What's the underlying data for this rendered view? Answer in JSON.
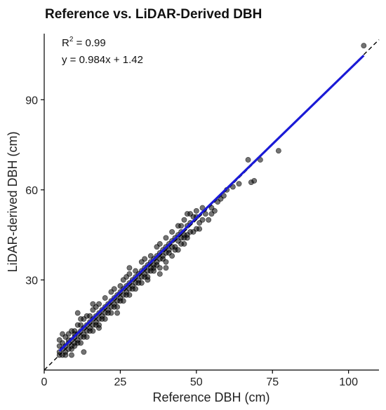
{
  "chart_data": {
    "type": "scatter",
    "title": "Reference vs. LiDAR-Derived DBH",
    "xlabel": "Reference DBH (cm)",
    "ylabel": "LiDAR-derived DBH (cm)",
    "xlim": [
      0,
      110
    ],
    "ylim": [
      0,
      112
    ],
    "xticks": [
      0,
      25,
      50,
      75,
      100
    ],
    "yticks": [
      30,
      60,
      90
    ],
    "annotations": {
      "r2_prefix": "R",
      "r2_sup": "2",
      "r2_value": " = 0.99",
      "equation": "y = 0.984x + 1.42"
    },
    "fit": {
      "slope": 0.984,
      "intercept": 1.42,
      "x_range": [
        5,
        105
      ],
      "color": "#1a1ad6"
    },
    "reference_line": {
      "slope": 1,
      "intercept": 0,
      "style": "dashed"
    },
    "points": [
      [
        105,
        108
      ],
      [
        77,
        73
      ],
      [
        71,
        70
      ],
      [
        69,
        63
      ],
      [
        68,
        62.5
      ],
      [
        67,
        70
      ],
      [
        64,
        62
      ],
      [
        60,
        60
      ],
      [
        58,
        57
      ],
      [
        55,
        54
      ],
      [
        54,
        50
      ],
      [
        53,
        52
      ],
      [
        52,
        54
      ],
      [
        51,
        49
      ],
      [
        50,
        47
      ],
      [
        49,
        51
      ],
      [
        48,
        46
      ],
      [
        47,
        48
      ],
      [
        46,
        45
      ],
      [
        45,
        44
      ],
      [
        44,
        45
      ],
      [
        43,
        41
      ],
      [
        42,
        43
      ],
      [
        41,
        40
      ],
      [
        40,
        41
      ],
      [
        39,
        38
      ],
      [
        38,
        39
      ],
      [
        37,
        36
      ],
      [
        36,
        37
      ],
      [
        35,
        34
      ],
      [
        34,
        35
      ],
      [
        33,
        32
      ],
      [
        32,
        33
      ],
      [
        31,
        30
      ],
      [
        30,
        31
      ],
      [
        29,
        28
      ],
      [
        28,
        29
      ],
      [
        27,
        26
      ],
      [
        26,
        27
      ],
      [
        25,
        24
      ],
      [
        24,
        25
      ],
      [
        23,
        22
      ],
      [
        22,
        23
      ],
      [
        21,
        20
      ],
      [
        20,
        21
      ],
      [
        19,
        18
      ],
      [
        18,
        19
      ],
      [
        17,
        16
      ],
      [
        16,
        17
      ],
      [
        15,
        14
      ],
      [
        14,
        15
      ],
      [
        13,
        12
      ],
      [
        12,
        13
      ],
      [
        11,
        10
      ],
      [
        10,
        11
      ],
      [
        9,
        8
      ],
      [
        8,
        9
      ],
      [
        7,
        6
      ],
      [
        6,
        7
      ],
      [
        5,
        5
      ],
      [
        5,
        6
      ],
      [
        6,
        5
      ],
      [
        7,
        8
      ],
      [
        8,
        7
      ],
      [
        9,
        10
      ],
      [
        10,
        9
      ],
      [
        11,
        12
      ],
      [
        12,
        11
      ],
      [
        13,
        14
      ],
      [
        14,
        13
      ],
      [
        15,
        16
      ],
      [
        16,
        15
      ],
      [
        17,
        18
      ],
      [
        18,
        17
      ],
      [
        19,
        20
      ],
      [
        20,
        19
      ],
      [
        21,
        22
      ],
      [
        22,
        21
      ],
      [
        23,
        24
      ],
      [
        24,
        23
      ],
      [
        25,
        26
      ],
      [
        26,
        25
      ],
      [
        27,
        28
      ],
      [
        28,
        27
      ],
      [
        29,
        30
      ],
      [
        30,
        29
      ],
      [
        31,
        32
      ],
      [
        32,
        31
      ],
      [
        33,
        34
      ],
      [
        34,
        33
      ],
      [
        35,
        36
      ],
      [
        36,
        35
      ],
      [
        37,
        38
      ],
      [
        38,
        37
      ],
      [
        39,
        40
      ],
      [
        40,
        39
      ],
      [
        41,
        42
      ],
      [
        42,
        41
      ],
      [
        43,
        44
      ],
      [
        44,
        43
      ],
      [
        45,
        46
      ],
      [
        46,
        44
      ],
      [
        47,
        45
      ],
      [
        48,
        49
      ],
      [
        50,
        51
      ],
      [
        52,
        50
      ],
      [
        56,
        53
      ],
      [
        57,
        56
      ],
      [
        59,
        58
      ],
      [
        62,
        61
      ],
      [
        45,
        48
      ],
      [
        40,
        44
      ],
      [
        35,
        38
      ],
      [
        30,
        33
      ],
      [
        25,
        28
      ],
      [
        20,
        24
      ],
      [
        15,
        18
      ],
      [
        12,
        17
      ],
      [
        10,
        13
      ],
      [
        8,
        12
      ],
      [
        6,
        12
      ],
      [
        5,
        10
      ],
      [
        7,
        11
      ],
      [
        9,
        13
      ],
      [
        11,
        15
      ],
      [
        13,
        17
      ],
      [
        17,
        21
      ],
      [
        22,
        26
      ],
      [
        27,
        31
      ],
      [
        32,
        36
      ],
      [
        37,
        41
      ],
      [
        42,
        46
      ],
      [
        47,
        52
      ],
      [
        50,
        53
      ],
      [
        48,
        52
      ],
      [
        46,
        50
      ],
      [
        44,
        48
      ],
      [
        38,
        42
      ],
      [
        33,
        37
      ],
      [
        28,
        32
      ],
      [
        23,
        27
      ],
      [
        18,
        22
      ],
      [
        16,
        20
      ],
      [
        14,
        18
      ],
      [
        12,
        15
      ],
      [
        10,
        12
      ],
      [
        8,
        10
      ],
      [
        6,
        9
      ],
      [
        5,
        8
      ],
      [
        7,
        5
      ],
      [
        9,
        7
      ],
      [
        11,
        9
      ],
      [
        13,
        11
      ],
      [
        15,
        13
      ],
      [
        17,
        15
      ],
      [
        19,
        17
      ],
      [
        21,
        19
      ],
      [
        23,
        21
      ],
      [
        25,
        23
      ],
      [
        27,
        25
      ],
      [
        29,
        27
      ],
      [
        31,
        29
      ],
      [
        33,
        31
      ],
      [
        35,
        33
      ],
      [
        37,
        35
      ],
      [
        39,
        37
      ],
      [
        41,
        39
      ],
      [
        43,
        40
      ],
      [
        45,
        42
      ],
      [
        47,
        44
      ],
      [
        49,
        46
      ],
      [
        51,
        47
      ],
      [
        55,
        52
      ],
      [
        10,
        8
      ],
      [
        12,
        9
      ],
      [
        14,
        11
      ],
      [
        16,
        13
      ],
      [
        18,
        15
      ],
      [
        20,
        17
      ],
      [
        22,
        19
      ],
      [
        24,
        21
      ],
      [
        26,
        23
      ],
      [
        28,
        25
      ],
      [
        30,
        27
      ],
      [
        32,
        29
      ],
      [
        34,
        31
      ],
      [
        36,
        33
      ],
      [
        38,
        34
      ],
      [
        40,
        36
      ],
      [
        42,
        38
      ],
      [
        44,
        40
      ],
      [
        36,
        34
      ],
      [
        26,
        30
      ],
      [
        16,
        22
      ],
      [
        18,
        14
      ],
      [
        24,
        19
      ],
      [
        28,
        34
      ],
      [
        34,
        30
      ],
      [
        40,
        34
      ],
      [
        46,
        42
      ],
      [
        38,
        32
      ],
      [
        11,
        19
      ],
      [
        13,
        6
      ],
      [
        9,
        5
      ]
    ]
  }
}
